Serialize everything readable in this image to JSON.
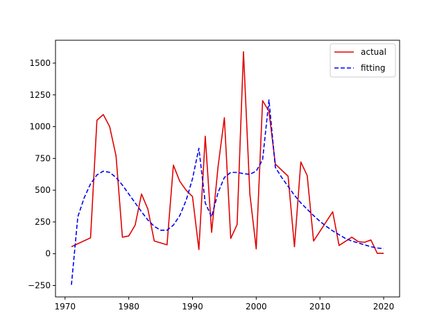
{
  "chart_data": {
    "type": "line",
    "title": "",
    "xlabel": "",
    "ylabel": "",
    "xlim": [
      1968.5,
      2022.5
    ],
    "ylim": [
      -340,
      1680
    ],
    "x_ticks": [
      1970,
      1980,
      1990,
      2000,
      2010,
      2020
    ],
    "x_tick_labels": [
      "1970",
      "1980",
      "1990",
      "2000",
      "2010",
      "2020"
    ],
    "y_ticks": [
      -250,
      0,
      250,
      500,
      750,
      1000,
      1250,
      1500
    ],
    "y_tick_labels": [
      "−250",
      "0",
      "250",
      "500",
      "750",
      "1000",
      "1250",
      "1500"
    ],
    "grid": false,
    "legend_position": "top-right",
    "series": [
      {
        "name": "actual",
        "color": "#e00000",
        "style": "solid",
        "x": [
          1971,
          1974,
          1975,
          1976,
          1977,
          1978,
          1979,
          1980,
          1981,
          1982,
          1983,
          1984,
          1986,
          1987,
          1988,
          1989,
          1990,
          1991,
          1992,
          1993,
          1994,
          1995,
          1996,
          1997,
          1998,
          1999,
          2000,
          2001,
          2002,
          2003,
          2005,
          2006,
          2007,
          2008,
          2009,
          2012,
          2013,
          2015,
          2016,
          2017,
          2018,
          2019,
          2020
        ],
        "y": [
          55,
          125,
          1050,
          1095,
          1000,
          770,
          130,
          140,
          225,
          470,
          350,
          100,
          70,
          697,
          570,
          500,
          450,
          33,
          925,
          168,
          680,
          1070,
          120,
          230,
          1590,
          470,
          38,
          1205,
          1120,
          705,
          610,
          55,
          722,
          615,
          100,
          330,
          65,
          130,
          95,
          90,
          108,
          3,
          3
        ]
      },
      {
        "name": "fitting",
        "color": "#0000ee",
        "style": "dashed",
        "x": [
          1971,
          1972,
          1973,
          1974,
          1975,
          1976,
          1977,
          1978,
          1979,
          1980,
          1981,
          1982,
          1983,
          1984,
          1985,
          1986,
          1987,
          1988,
          1989,
          1990,
          1991,
          1992,
          1993,
          1994,
          1995,
          1996,
          1997,
          1998,
          1999,
          2000,
          2001,
          2002,
          2003,
          2004,
          2005,
          2006,
          2007,
          2008,
          2009,
          2010,
          2011,
          2012,
          2013,
          2014,
          2015,
          2016,
          2017,
          2018,
          2019,
          2020
        ],
        "y": [
          -245,
          290,
          440,
          550,
          620,
          650,
          640,
          600,
          540,
          470,
          400,
          330,
          265,
          215,
          185,
          185,
          225,
          300,
          420,
          590,
          830,
          400,
          290,
          480,
          600,
          640,
          640,
          630,
          625,
          650,
          740,
          1210,
          680,
          600,
          530,
          460,
          400,
          350,
          300,
          255,
          215,
          180,
          150,
          120,
          100,
          85,
          70,
          55,
          45,
          40
        ]
      }
    ]
  }
}
